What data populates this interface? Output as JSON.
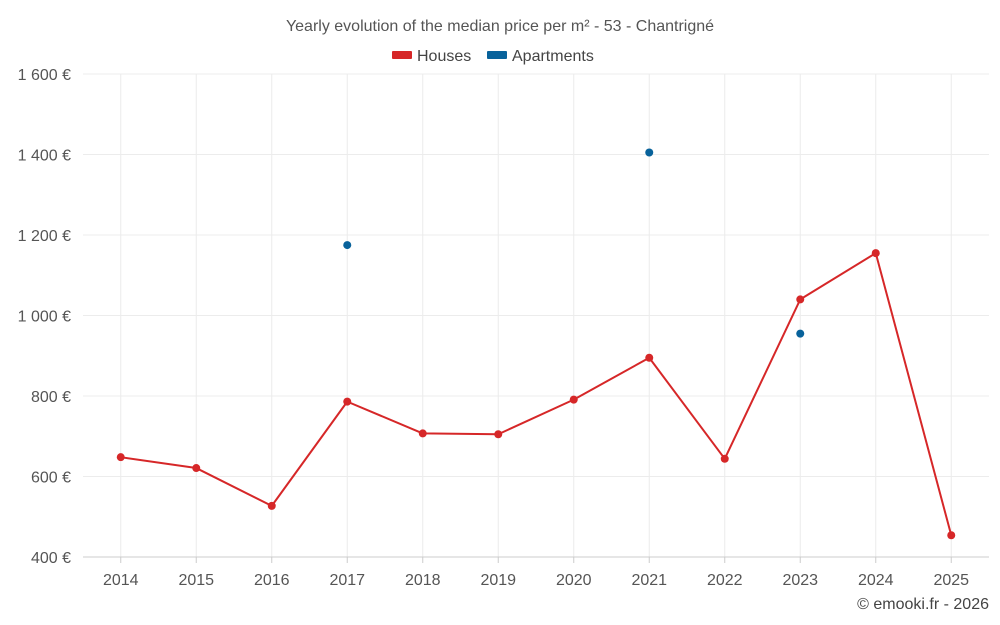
{
  "chart_data": {
    "type": "line",
    "title": "Yearly evolution of the median price per m² - 53 - Chantrigné",
    "categories": [
      "2014",
      "2015",
      "2016",
      "2017",
      "2018",
      "2019",
      "2020",
      "2021",
      "2022",
      "2023",
      "2024",
      "2025"
    ],
    "series": [
      {
        "name": "Houses",
        "color": "#d62728",
        "values": [
          648,
          621,
          527,
          786,
          707,
          705,
          791,
          895,
          644,
          1040,
          1155,
          454
        ]
      },
      {
        "name": "Apartments",
        "color": "#08629b",
        "values": [
          null,
          null,
          null,
          1175,
          null,
          null,
          null,
          1405,
          null,
          955,
          null,
          null
        ]
      }
    ],
    "ylim": [
      400,
      1600
    ],
    "yticks": [
      400,
      600,
      800,
      1000,
      1200,
      1400,
      1600
    ],
    "ytick_labels": [
      "400 €",
      "600 €",
      "800 €",
      "1 000 €",
      "1 200 €",
      "1 400 €",
      "1 600 €"
    ],
    "grid": true,
    "legend_position": "top-center"
  },
  "credit": "© emooki.fr - 2026"
}
